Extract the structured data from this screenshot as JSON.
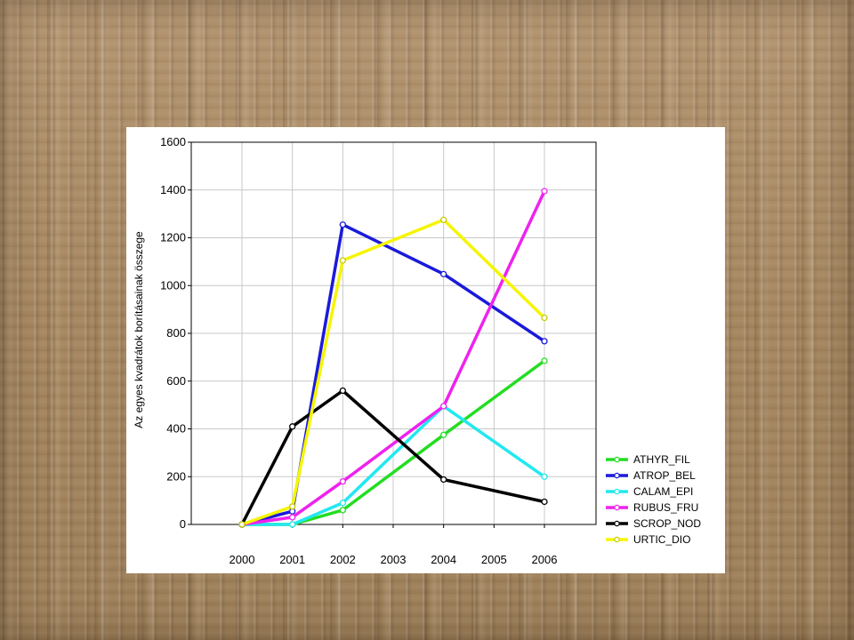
{
  "chart_data": {
    "type": "line",
    "title": "",
    "xlabel": "",
    "ylabel": "Az egyes kvadrátok borításainak összege",
    "x": [
      2000,
      2001,
      2002,
      2003,
      2004,
      2005,
      2006
    ],
    "x_tick_labels": [
      "2000",
      "2001",
      "2002",
      "2003",
      "2004",
      "2005",
      "2006"
    ],
    "y_tick_labels": [
      "0",
      "200",
      "400",
      "600",
      "800",
      "1000",
      "1200",
      "1400",
      "1600"
    ],
    "ylim": [
      0,
      1600
    ],
    "grid": true,
    "legend_position": "bottom-right",
    "series": [
      {
        "name": "ATHYR_FIL",
        "color": "#22dd22",
        "x": [
          2000,
          2001,
          2002,
          2004,
          2006
        ],
        "values": [
          0,
          0,
          60,
          375,
          685
        ]
      },
      {
        "name": "ATROP_BEL",
        "color": "#1a1adb",
        "x": [
          2000,
          2001,
          2002,
          2004,
          2006
        ],
        "values": [
          0,
          55,
          1255,
          1048,
          767
        ]
      },
      {
        "name": "CALAM_EPI",
        "color": "#22e8f0",
        "x": [
          2000,
          2001,
          2002,
          2004,
          2006
        ],
        "values": [
          0,
          0,
          90,
          495,
          200
        ]
      },
      {
        "name": "RUBUS_FRU",
        "color": "#ee22ee",
        "x": [
          2000,
          2001,
          2002,
          2004,
          2006
        ],
        "values": [
          0,
          30,
          180,
          495,
          1395
        ]
      },
      {
        "name": "SCROP_NOD",
        "color": "#000000",
        "x": [
          2000,
          2001,
          2002,
          2004,
          2006
        ],
        "values": [
          0,
          410,
          560,
          188,
          95
        ]
      },
      {
        "name": "URTIC_DIO",
        "color": "#f5f500",
        "x": [
          2000,
          2001,
          2002,
          2004,
          2006
        ],
        "values": [
          0,
          75,
          1105,
          1275,
          865
        ]
      }
    ]
  }
}
